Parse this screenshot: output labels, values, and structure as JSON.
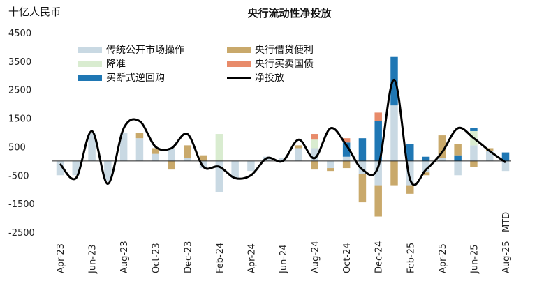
{
  "chart_data": {
    "type": "bar",
    "title": "央行流动性净投放",
    "ylabel": "十亿人民币",
    "ylim": [
      -2500,
      4500
    ],
    "yticks": [
      4500,
      3500,
      2500,
      1500,
      500,
      -500,
      -1500,
      -2500
    ],
    "x_tick_labels": [
      "Apr-23",
      "Jun-23",
      "Aug-23",
      "Oct-23",
      "Dec-23",
      "Feb-24",
      "Apr-24",
      "Jun-24",
      "Aug-24",
      "Oct-24",
      "Dec-24",
      "Feb-25",
      "Apr-25",
      "Jun-25",
      "Aug-25"
    ],
    "x_tick_positions": [
      0,
      2,
      4,
      6,
      8,
      10,
      12,
      14,
      16,
      18,
      20,
      22,
      24,
      26,
      28
    ],
    "extra_annotation": "MTD",
    "series": [
      {
        "name": "传统公开市场操作",
        "color": "#c9d9e3",
        "values": [
          -500,
          -500,
          1000,
          -700,
          1000,
          800,
          250,
          450,
          100,
          -250,
          -1100,
          -600,
          -350,
          150,
          100,
          450,
          450,
          -250,
          150,
          -450,
          -850,
          1950,
          -850,
          -400,
          100,
          -500,
          550,
          350,
          -350
        ]
      },
      {
        "name": "降准",
        "color": "#d9ecd0",
        "values": [
          0,
          0,
          0,
          0,
          0,
          0,
          0,
          0,
          0,
          0,
          950,
          0,
          0,
          0,
          0,
          0,
          300,
          0,
          0,
          0,
          0,
          0,
          0,
          0,
          0,
          0,
          500,
          0,
          0
        ]
      },
      {
        "name": "买断式逆回购",
        "color": "#1f77b4",
        "values": [
          0,
          0,
          0,
          0,
          0,
          0,
          0,
          0,
          0,
          0,
          0,
          0,
          0,
          0,
          0,
          0,
          0,
          0,
          500,
          800,
          1400,
          1700,
          600,
          150,
          0,
          200,
          100,
          0,
          300
        ]
      },
      {
        "name": "央行借贷便利",
        "color": "#c9a96b",
        "values": [
          0,
          0,
          0,
          0,
          0,
          200,
          200,
          -300,
          450,
          200,
          0,
          0,
          0,
          0,
          0,
          100,
          -300,
          -100,
          -250,
          -1000,
          -1100,
          -850,
          -300,
          -100,
          800,
          400,
          -200,
          100,
          0
        ]
      },
      {
        "name": "央行买卖国债",
        "color": "#e88b6a",
        "values": [
          0,
          0,
          0,
          0,
          0,
          0,
          0,
          0,
          0,
          0,
          0,
          0,
          0,
          0,
          0,
          0,
          200,
          0,
          150,
          0,
          300,
          0,
          0,
          0,
          0,
          0,
          0,
          0,
          0
        ]
      },
      {
        "name": "净投放",
        "color": "#000000",
        "type": "line",
        "values": [
          -100,
          -600,
          1050,
          -800,
          1150,
          1400,
          500,
          450,
          950,
          -200,
          -200,
          -600,
          -500,
          100,
          0,
          750,
          100,
          1150,
          550,
          -300,
          -200,
          2850,
          -650,
          -300,
          300,
          1150,
          800,
          350,
          -50
        ]
      }
    ]
  }
}
